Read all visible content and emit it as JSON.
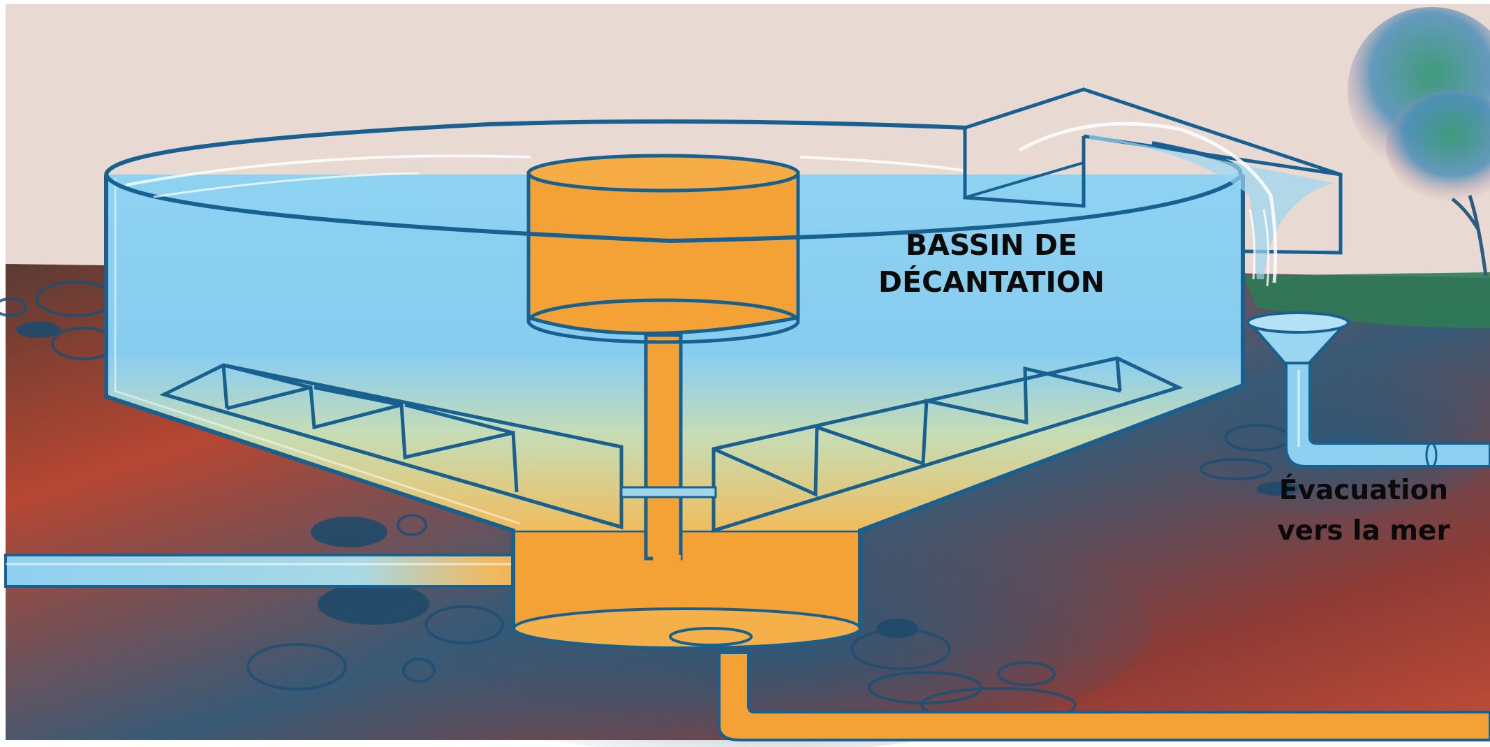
{
  "labels": {
    "title_line1": "BASSIN DE",
    "title_line2": "DÉCANTATION",
    "outlet_line1": "Évacuation",
    "outlet_line2": "vers la mer"
  },
  "colors": {
    "sky": "#e8d9d2",
    "water": "#86cdf0",
    "sludge": "#f4a235",
    "outline": "#17608f",
    "ground_red": "#c04a35",
    "ground_blue": "#2d5a7d",
    "grass": "#2f7a55"
  }
}
